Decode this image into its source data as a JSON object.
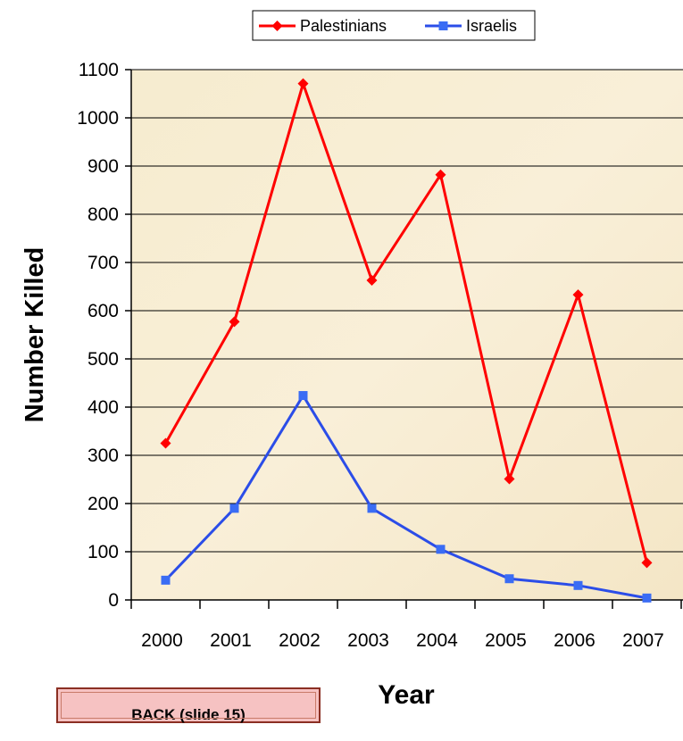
{
  "chart_data": {
    "type": "line",
    "categories": [
      "2000",
      "2001",
      "2002",
      "2003",
      "2004",
      "2005",
      "2006",
      "2007"
    ],
    "series": [
      {
        "name": "Palestinians",
        "color": "#ff0000",
        "marker": "diamond",
        "values": [
          325,
          577,
          1071,
          663,
          882,
          251,
          633,
          77
        ]
      },
      {
        "name": "Israelis",
        "color": "#2b4de8",
        "marker": "square",
        "values": [
          41,
          190,
          424,
          190,
          105,
          44,
          30,
          4
        ]
      }
    ],
    "ylabel": "Number Killed",
    "xlabel": "Year",
    "ylim": [
      0,
      1100
    ],
    "yticks": [
      0,
      100,
      200,
      300,
      400,
      500,
      600,
      700,
      800,
      900,
      1000,
      1100
    ],
    "grid": true,
    "legend": "top-center"
  },
  "back_button": {
    "label": "BACK (slide 15)"
  }
}
